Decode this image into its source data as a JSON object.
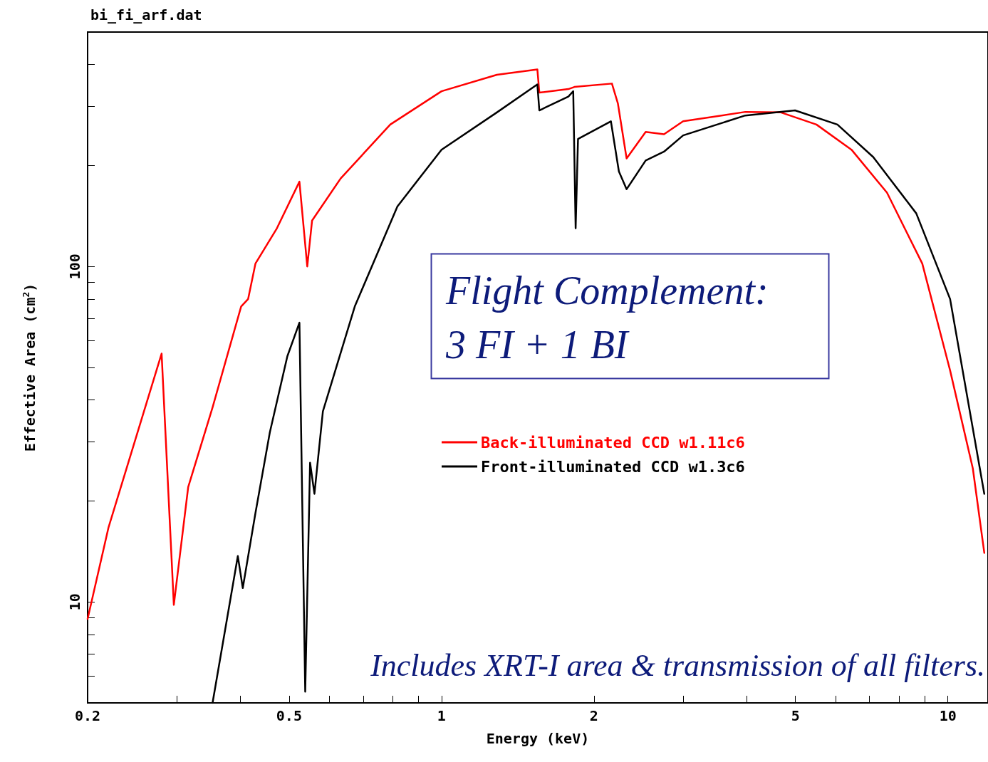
{
  "chart_data": {
    "type": "line",
    "title": "bi_fi_arf.dat",
    "xlabel": "Energy (keV)",
    "ylabel": "Effective Area (cm$^{2}$)",
    "log": "xy",
    "xlim": [
      0.2,
      12
    ],
    "ylim": [
      5,
      500
    ],
    "xticks": [
      0.2,
      {
        "value": 0.3,
        "label": null
      },
      {
        "value": 0.4,
        "label": null
      },
      0.5,
      {
        "value": 0.6,
        "label": null
      },
      {
        "value": 0.7,
        "label": null
      },
      {
        "value": 0.8,
        "label": null
      },
      {
        "value": 0.9,
        "label": null
      },
      1,
      2,
      {
        "value": 3,
        "label": null
      },
      {
        "value": 4,
        "label": null
      },
      5,
      {
        "value": 6,
        "label": null
      },
      {
        "value": 7,
        "label": null
      },
      {
        "value": 8,
        "label": null
      },
      {
        "value": 9,
        "label": null
      },
      10
    ],
    "yticks": [
      {
        "value": 6,
        "label": null
      },
      {
        "value": 7,
        "label": null
      },
      {
        "value": 8,
        "label": null
      },
      {
        "value": 9,
        "label": null
      },
      10,
      {
        "value": 20,
        "label": null
      },
      {
        "value": 30,
        "label": null
      },
      {
        "value": 40,
        "label": null
      },
      {
        "value": 50,
        "label": null
      },
      {
        "value": 60,
        "label": null
      },
      {
        "value": 70,
        "label": null
      },
      {
        "value": 80,
        "label": null
      },
      {
        "value": 90,
        "label": null
      },
      100,
      {
        "value": 200,
        "label": null
      },
      {
        "value": 300,
        "label": null
      },
      {
        "value": 400,
        "label": null
      }
    ],
    "grid": false,
    "legend": "right",
    "marker": "none",
    "line_style": "solid",
    "annotations": [
      "Flight Complement:\n3 FI + 1 BI",
      "Includes XRT-I area & transmission of all filters."
    ],
    "series": [
      {
        "name": "Back-illuminated CCD w1.11c6",
        "color": "#ff0000",
        "x": [
          0.2,
          0.22,
          0.28,
          0.296,
          0.316,
          0.353,
          0.402,
          0.415,
          0.429,
          0.473,
          0.524,
          0.543,
          0.555,
          0.632,
          0.792,
          1,
          1.286,
          1.546,
          1.56,
          1.78,
          1.83,
          2.17,
          2.23,
          2.32,
          2.53,
          2.75,
          3.0,
          3.98,
          4.68,
          5.5,
          6.45,
          7.58,
          8.9,
          10.1,
          11.2,
          11.8
        ],
        "values": [
          8.9,
          16.7,
          55,
          9.8,
          22,
          38,
          76,
          80,
          102,
          130,
          179,
          100,
          137,
          183,
          265,
          333,
          373,
          387,
          330,
          338,
          343,
          351,
          306,
          210,
          252,
          248,
          271,
          289,
          288,
          265,
          223,
          166,
          102,
          49,
          25,
          14
        ]
      },
      {
        "name": "Front-illuminated CCD w1.3c6",
        "color": "#000000",
        "x": [
          0.353,
          0.396,
          0.405,
          0.429,
          0.458,
          0.496,
          0.524,
          0.538,
          0.55,
          0.561,
          0.583,
          0.674,
          0.818,
          1,
          1.286,
          1.546,
          1.56,
          1.78,
          1.82,
          1.84,
          1.86,
          2.16,
          2.24,
          2.32,
          2.53,
          2.75,
          3.0,
          3.98,
          4.99,
          6.05,
          7.12,
          8.66,
          10.1,
          11.8
        ],
        "values": [
          5,
          13.7,
          11,
          18.4,
          32,
          54,
          68,
          5.4,
          26,
          21,
          37,
          76,
          151,
          223,
          288,
          349,
          292,
          321,
          333,
          130,
          240,
          271,
          192,
          170,
          207,
          220,
          246,
          282,
          292,
          265,
          212,
          144,
          80,
          21
        ]
      }
    ]
  }
}
